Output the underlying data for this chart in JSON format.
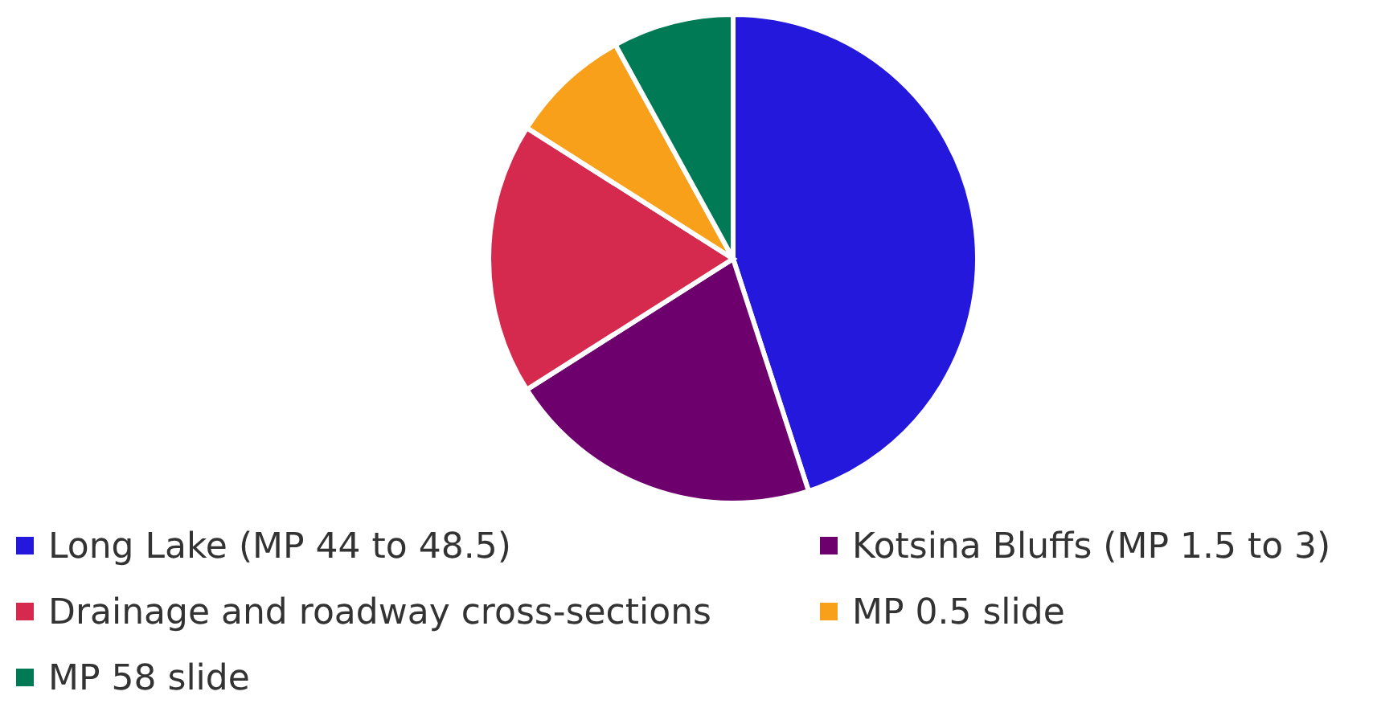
{
  "chart_data": {
    "type": "pie",
    "categories": [
      "Long Lake (MP 44 to 48.5)",
      "Kotsina Bluffs (MP 1.5 to 3)",
      "Drainage and roadway cross-sections",
      "MP 0.5 slide",
      "MP 58 slide"
    ],
    "values": [
      45,
      21,
      18,
      8,
      8
    ],
    "colors": [
      "#2318dc",
      "#6e006e",
      "#d6294e",
      "#f9a01b",
      "#007a54"
    ],
    "legend": "bottom"
  }
}
